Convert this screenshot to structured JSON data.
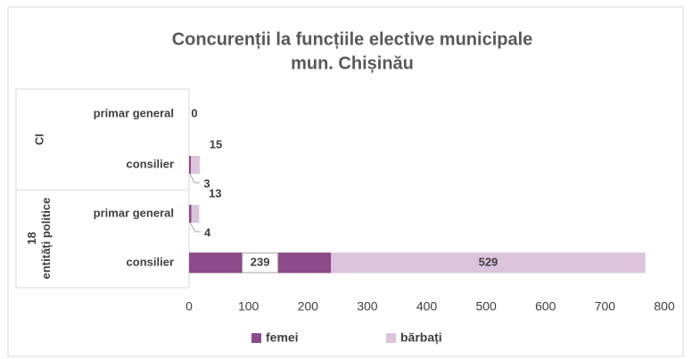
{
  "chart_data": {
    "type": "stacked_bar_horizontal",
    "title": [
      "Concurenții la funcțiile elective municipale",
      "mun. Chișinău"
    ],
    "categories": [
      "primar general",
      "consilier",
      "primar general",
      "consilier"
    ],
    "category_groups": [
      "CI",
      "CI",
      "18 entități politice",
      "18 entități politice"
    ],
    "series": [
      {
        "name": "femei",
        "color": "#8c4b8a",
        "values": [
          null,
          3,
          4,
          239
        ]
      },
      {
        "name": "bărbați",
        "color": "#dbc4dc",
        "values": [
          0,
          15,
          13,
          529
        ]
      }
    ],
    "xlim": [
      0,
      800
    ],
    "xticks": [
      0,
      100,
      200,
      300,
      400,
      500,
      600,
      700,
      800
    ],
    "legend": "bottom"
  }
}
